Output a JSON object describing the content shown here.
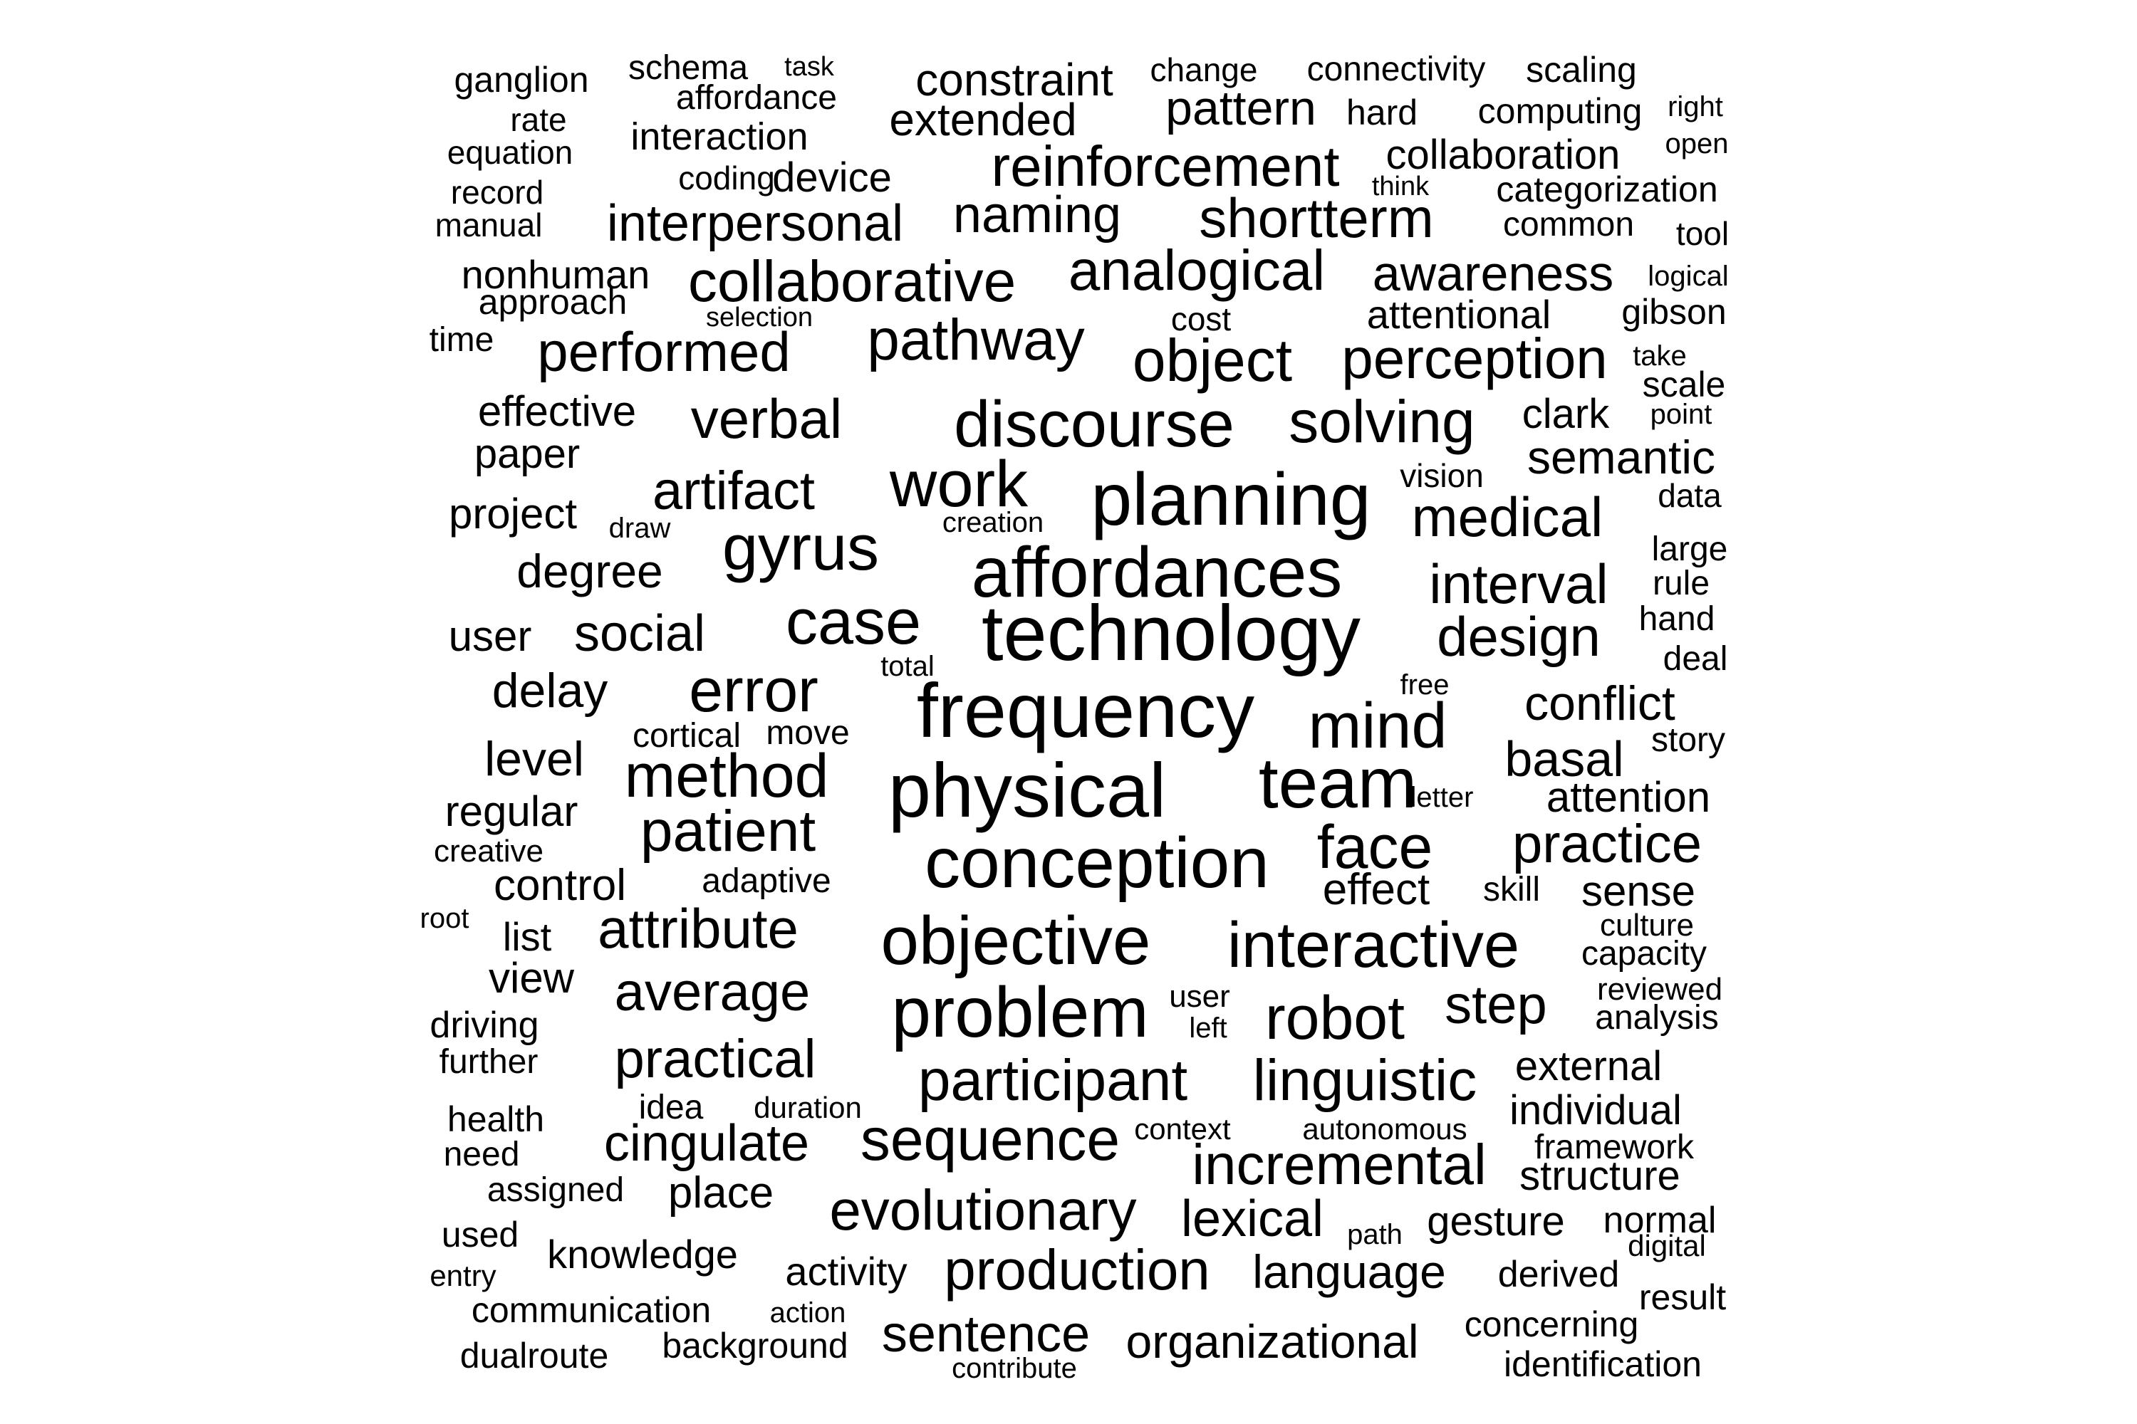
{
  "words": [
    "ganglion",
    "schema",
    "task",
    "constraint",
    "change",
    "connectivity",
    "scaling",
    "rate",
    "affordance",
    "extended",
    "pattern",
    "hard",
    "computing",
    "right",
    "equation",
    "interaction",
    "reinforcement",
    "collaboration",
    "open",
    "record",
    "coding",
    "device",
    "think",
    "categorization",
    "manual",
    "interpersonal",
    "naming",
    "shortterm",
    "common",
    "tool",
    "nonhuman",
    "collaborative",
    "analogical",
    "awareness",
    "logical",
    "approach",
    "selection",
    "cost",
    "attentional",
    "gibson",
    "time",
    "performed",
    "pathway",
    "object",
    "perception",
    "take",
    "scale",
    "effective",
    "verbal",
    "discourse",
    "solving",
    "clark",
    "point",
    "paper",
    "work",
    "semantic",
    "vision",
    "data",
    "project",
    "draw",
    "artifact",
    "planning",
    "medical",
    "creation",
    "gyrus",
    "affordances",
    "large",
    "degree",
    "interval",
    "rule",
    "user",
    "social",
    "case",
    "technology",
    "design",
    "hand",
    "total",
    "deal",
    "delay",
    "error",
    "frequency",
    "free",
    "conflict",
    "mind",
    "cortical",
    "move",
    "story",
    "level",
    "method",
    "basal",
    "physical",
    "team",
    "regular",
    "letter",
    "attention",
    "patient",
    "face",
    "practice",
    "creative",
    "conception",
    "control",
    "adaptive",
    "effect",
    "skill",
    "sense",
    "root",
    "list",
    "attribute",
    "objective",
    "interactive",
    "culture",
    "capacity",
    "view",
    "average",
    "reviewed",
    "user",
    "step",
    "analysis",
    "problem",
    "left",
    "robot",
    "driving",
    "practical",
    "external",
    "further",
    "participant",
    "linguistic",
    "health",
    "idea",
    "duration",
    "individual",
    "cingulate",
    "sequence",
    "context",
    "autonomous",
    "framework",
    "need",
    "incremental",
    "structure",
    "assigned",
    "place",
    "evolutionary",
    "lexical",
    "gesture",
    "normal",
    "used",
    "path",
    "digital",
    "knowledge",
    "entry",
    "activity",
    "production",
    "language",
    "derived",
    "result",
    "communication",
    "action",
    "concerning",
    "sentence",
    "organizational",
    "dualroute",
    "background",
    "identification",
    "contribute"
  ]
}
